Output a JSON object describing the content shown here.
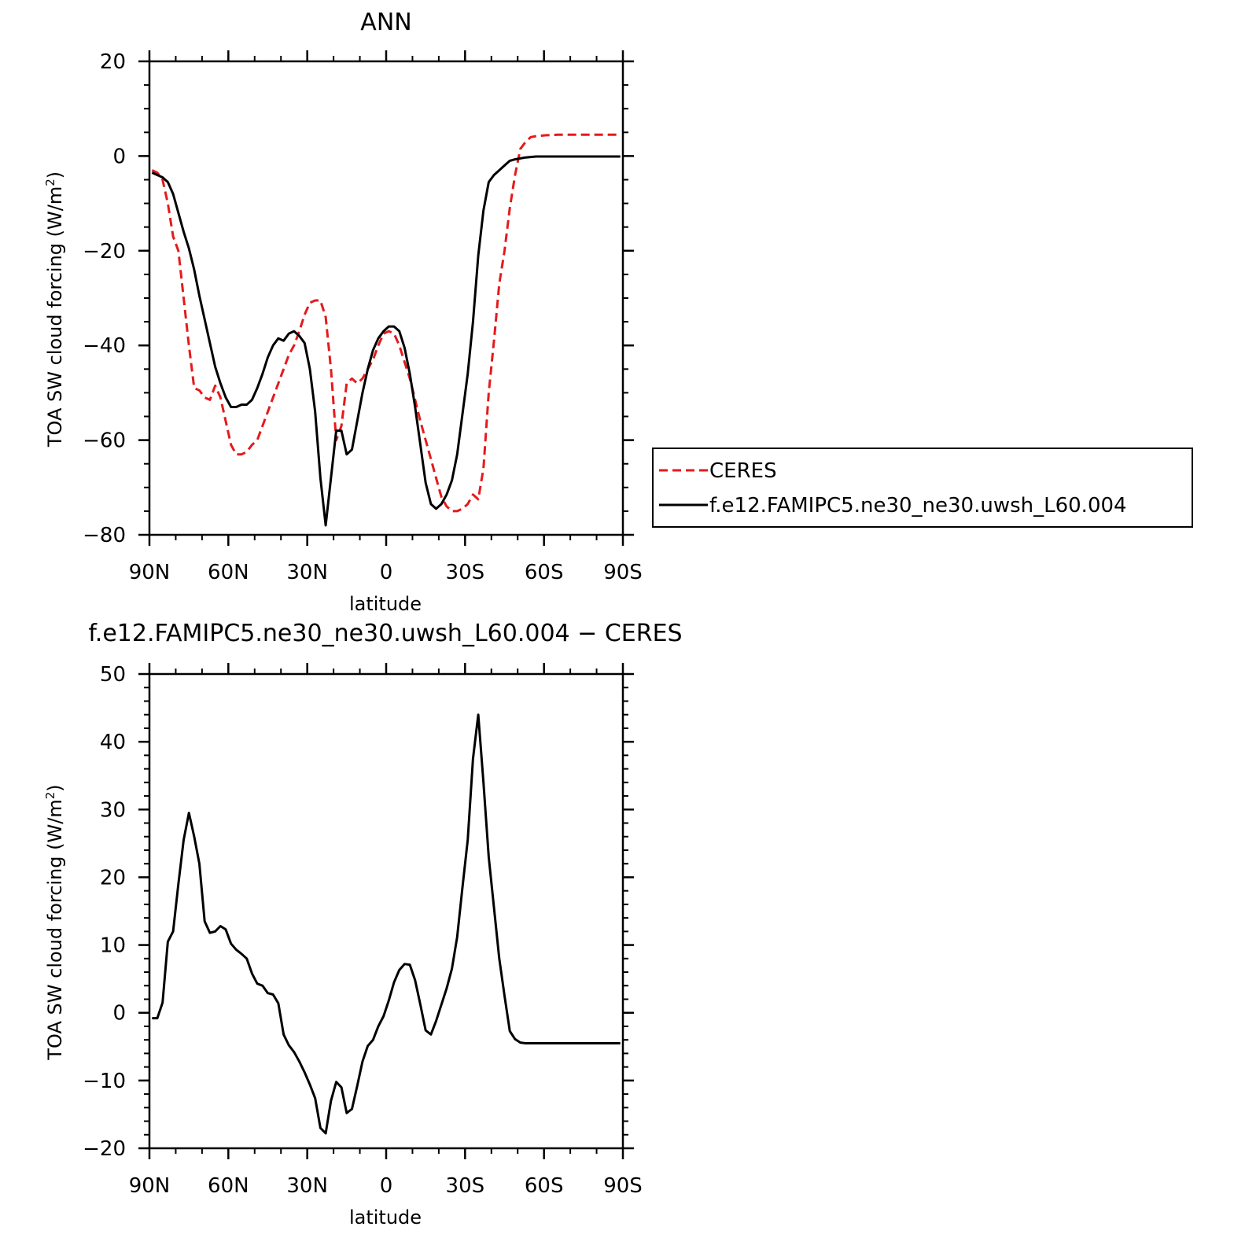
{
  "chart_data": [
    {
      "type": "line",
      "title": "ANN",
      "xlabel": "latitude",
      "ylabel": "TOA SW cloud forcing (W/m",
      "ylabel_sup": "2",
      "ylabel_end": ")",
      "xlim": [
        90,
        -90
      ],
      "ylim": [
        -80,
        20
      ],
      "x_ticks": [
        90,
        60,
        30,
        0,
        -30,
        -60,
        -90
      ],
      "x_tick_labels": [
        "90N",
        "60N",
        "30N",
        "0",
        "30S",
        "60S",
        "90S"
      ],
      "y_ticks": [
        20,
        0,
        -20,
        -40,
        -60,
        -80
      ],
      "y_tick_labels": [
        "20",
        "0",
        "−20",
        "−40",
        "−60",
        "−80"
      ],
      "legend": {
        "position": "right",
        "entries": [
          "CERES",
          "f.e12.FAMIPC5.ne30_ne30.uwsh_L60.004"
        ]
      },
      "series": [
        {
          "name": "CERES",
          "color": "#e41a1c",
          "dash": "dashed",
          "x": [
            89,
            87,
            85,
            83,
            81,
            79,
            77,
            75,
            73,
            71,
            69,
            67,
            65,
            63,
            61,
            59,
            57,
            55,
            53,
            51,
            49,
            47,
            45,
            43,
            41,
            39,
            37,
            35,
            33,
            31,
            29,
            27,
            25,
            23,
            21,
            19,
            17,
            15,
            13,
            11,
            9,
            7,
            5,
            3,
            1,
            -1,
            -3,
            -5,
            -7,
            -9,
            -11,
            -13,
            -15,
            -17,
            -19,
            -21,
            -23,
            -25,
            -27,
            -29,
            -31,
            -33,
            -35,
            -37,
            -39,
            -41,
            -43,
            -45,
            -47,
            -49,
            -51,
            -53,
            -55,
            -57,
            -59,
            -61,
            -63,
            -65,
            -67,
            -69,
            -71,
            -73,
            -75,
            -77,
            -79,
            -81,
            -83,
            -85,
            -87,
            -89
          ],
          "values": [
            -3,
            -3.5,
            -5,
            -10,
            -17,
            -20,
            -30,
            -40,
            -49,
            -49.5,
            -51,
            -51.5,
            -48.5,
            -51,
            -56,
            -61,
            -63,
            -63,
            -62.5,
            -61,
            -60,
            -57,
            -54,
            -51,
            -48,
            -45,
            -42,
            -40,
            -37,
            -33.5,
            -31,
            -30.5,
            -30.5,
            -34,
            -45,
            -60,
            -57,
            -48,
            -47,
            -48,
            -47,
            -45,
            -43,
            -40,
            -37.5,
            -37,
            -37.5,
            -40,
            -43.5,
            -47,
            -51.5,
            -56,
            -60,
            -64,
            -68,
            -72,
            -74,
            -75,
            -75,
            -74.5,
            -73.5,
            -71.5,
            -72.5,
            -66,
            -50,
            -39,
            -27,
            -20,
            -11,
            -4,
            1.5,
            3,
            4,
            4.2,
            4.3,
            4.4,
            4.4,
            4.5,
            4.5,
            4.5,
            4.5,
            4.5,
            4.5,
            4.5,
            4.5,
            4.5,
            4.5,
            4.5,
            4.5,
            4.5
          ]
        },
        {
          "name": "f.e12.FAMIPC5.ne30_ne30.uwsh_L60.004",
          "color": "#000000",
          "dash": "solid",
          "x": [
            89,
            87,
            85,
            83,
            81,
            79,
            77,
            75,
            73,
            71,
            69,
            67,
            65,
            63,
            61,
            59,
            57,
            55,
            53,
            51,
            49,
            47,
            45,
            43,
            41,
            39,
            37,
            35,
            33,
            31,
            29,
            27,
            25,
            23,
            21,
            19,
            17,
            15,
            13,
            11,
            9,
            7,
            5,
            3,
            1,
            -1,
            -3,
            -5,
            -7,
            -9,
            -11,
            -13,
            -15,
            -17,
            -19,
            -21,
            -23,
            -25,
            -27,
            -29,
            -31,
            -33,
            -35,
            -37,
            -39,
            -41,
            -43,
            -45,
            -47,
            -49,
            -51,
            -53,
            -55,
            -57,
            -59,
            -61,
            -63,
            -65,
            -67,
            -69,
            -71,
            -73,
            -75,
            -77,
            -79,
            -81,
            -83,
            -85,
            -87,
            -89
          ],
          "values": [
            -3.5,
            -4,
            -4.5,
            -5.5,
            -8,
            -12,
            -16,
            -19.5,
            -24,
            -29.5,
            -34.5,
            -39.5,
            -44.5,
            -48,
            -51,
            -53,
            -53,
            -52.5,
            -52.5,
            -51.5,
            -49,
            -46,
            -42.5,
            -40,
            -38.5,
            -39,
            -37.5,
            -37,
            -38,
            -39.5,
            -45,
            -54,
            -68,
            -78,
            -68,
            -58,
            -58,
            -63,
            -62,
            -56,
            -50,
            -45,
            -41,
            -38.5,
            -37,
            -36,
            -36,
            -37,
            -40.5,
            -46,
            -53,
            -61,
            -69,
            -73.5,
            -74.5,
            -73.5,
            -71.5,
            -68.5,
            -63,
            -54.5,
            -46,
            -35,
            -21,
            -11.5,
            -5.5,
            -4,
            -3,
            -2,
            -1,
            -0.7,
            -0.5,
            -0.3,
            -0.2,
            -0.1,
            -0.1,
            -0.1,
            -0.1,
            -0.1,
            -0.1,
            -0.1,
            -0.1,
            -0.1,
            -0.1,
            -0.1,
            -0.1,
            -0.1,
            -0.1,
            -0.1,
            -0.1,
            -0.1
          ]
        }
      ]
    },
    {
      "type": "line",
      "title": "f.e12.FAMIPC5.ne30_ne30.uwsh_L60.004 − CERES",
      "xlabel": "latitude",
      "ylabel": "TOA SW cloud forcing (W/m",
      "ylabel_sup": "2",
      "ylabel_end": ")",
      "xlim": [
        90,
        -90
      ],
      "ylim": [
        -20,
        50
      ],
      "x_ticks": [
        90,
        60,
        30,
        0,
        -30,
        -60,
        -90
      ],
      "x_tick_labels": [
        "90N",
        "60N",
        "30N",
        "0",
        "30S",
        "60S",
        "90S"
      ],
      "y_ticks": [
        50,
        40,
        30,
        20,
        10,
        0,
        -10,
        -20
      ],
      "y_tick_labels": [
        "50",
        "40",
        "30",
        "20",
        "10",
        "0",
        "−10",
        "−20"
      ],
      "series": [
        {
          "color": "#000000",
          "dash": "solid",
          "x": [
            89,
            87,
            85,
            83,
            81,
            79,
            77,
            75,
            73,
            71,
            69,
            67,
            65,
            63,
            61,
            59,
            57,
            55,
            53,
            51,
            49,
            47,
            45,
            43,
            41,
            39,
            37,
            35,
            33,
            31,
            29,
            27,
            25,
            23,
            21,
            19,
            17,
            15,
            13,
            11,
            9,
            7,
            5,
            3,
            1,
            -1,
            -3,
            -5,
            -7,
            -9,
            -11,
            -13,
            -15,
            -17,
            -19,
            -21,
            -23,
            -25,
            -27,
            -29,
            -31,
            -33,
            -35,
            -37,
            -39,
            -41,
            -43,
            -45,
            -47,
            -49,
            -51,
            -53,
            -55,
            -57,
            -59,
            -61,
            -63,
            -65,
            -67,
            -69,
            -71,
            -73,
            -75,
            -77,
            -79,
            -81,
            -83,
            -85,
            -87,
            -89
          ],
          "values": [
            -0.8,
            -0.8,
            1.5,
            10.5,
            12,
            19,
            25.5,
            29.5,
            26,
            22,
            13.5,
            11.8,
            12,
            12.8,
            12.3,
            10.2,
            9.3,
            8.7,
            8,
            5.8,
            4.3,
            4,
            2.9,
            2.7,
            1.4,
            -3.2,
            -4.8,
            -5.8,
            -7.2,
            -8.8,
            -10.6,
            -12.6,
            -17,
            -17.8,
            -13,
            -10.2,
            -11,
            -14.8,
            -14.2,
            -10.8,
            -7.2,
            -4.9,
            -4,
            -2,
            -0.5,
            1.8,
            4.5,
            6.3,
            7.2,
            7.1,
            4.8,
            1.2,
            -2.6,
            -3.2,
            -1.2,
            1.2,
            3.6,
            6.5,
            11.2,
            18.5,
            25.5,
            37.5,
            44,
            34,
            23,
            15.5,
            8,
            2.5,
            -2.7,
            -3.9,
            -4.4,
            -4.5,
            -4.5,
            -4.5,
            -4.5,
            -4.5,
            -4.5,
            -4.5,
            -4.5,
            -4.5,
            -4.5,
            -4.5,
            -4.5,
            -4.5,
            -4.5,
            -4.5,
            -4.5,
            -4.5,
            -4.5,
            -4.5
          ]
        }
      ]
    }
  ]
}
